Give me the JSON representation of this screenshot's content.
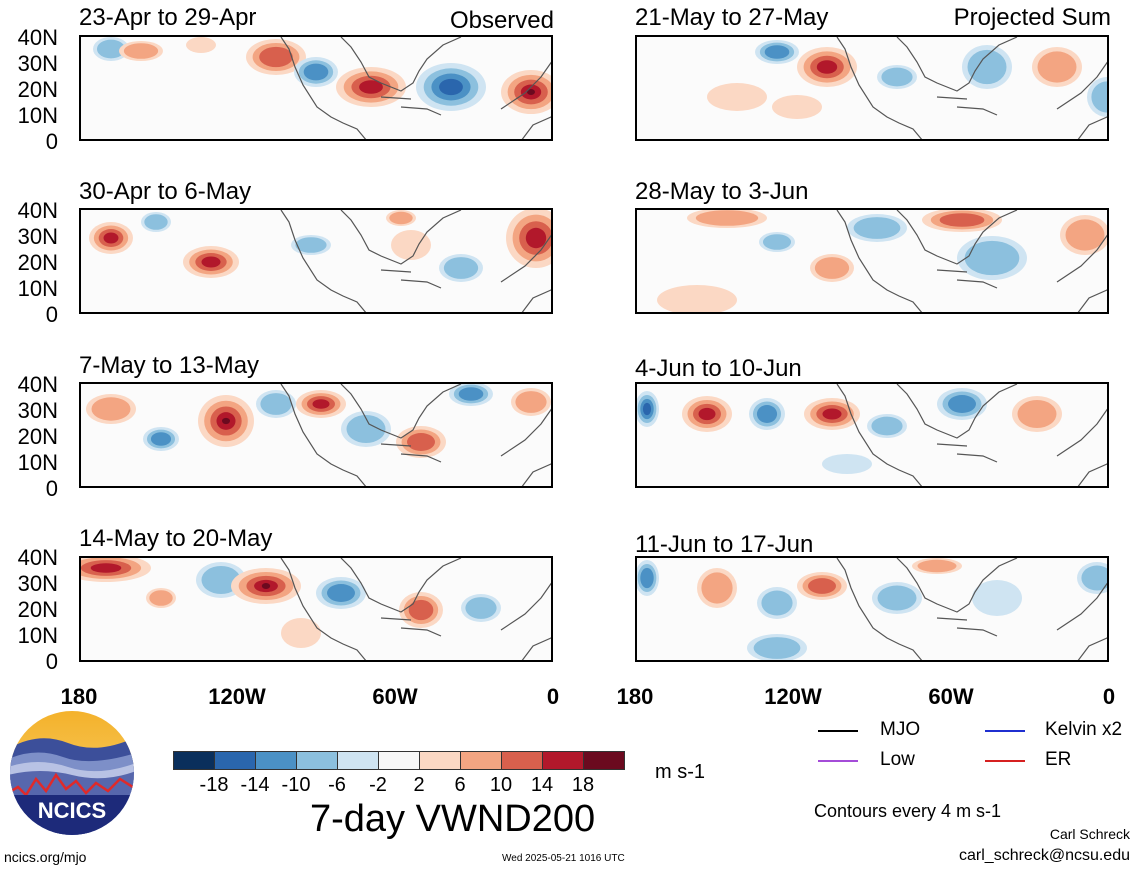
{
  "panels": [
    {
      "title": "23-Apr to 29-Apr",
      "tag": "Observed"
    },
    {
      "title": "30-Apr to 6-May",
      "tag": ""
    },
    {
      "title": "7-May to 13-May",
      "tag": ""
    },
    {
      "title": "14-May to 20-May",
      "tag": ""
    },
    {
      "title": "21-May to 27-May",
      "tag": "Projected Sum"
    },
    {
      "title": "28-May to 3-Jun",
      "tag": ""
    },
    {
      "title": "4-Jun to 10-Jun",
      "tag": ""
    },
    {
      "title": "11-Jun to 17-Jun",
      "tag": ""
    }
  ],
  "lat_labels": [
    "40N",
    "30N",
    "20N",
    "10N",
    "0"
  ],
  "lon_labels": [
    "180",
    "120W",
    "60W",
    "0"
  ],
  "colorbar": {
    "colors": [
      "#0a2f5c",
      "#2a66ad",
      "#4b91c5",
      "#8cc0de",
      "#cfe4f2",
      "#f7f7f7",
      "#fbd8c4",
      "#f3a582",
      "#d8604d",
      "#b2182b",
      "#6b0a1f"
    ],
    "labels": [
      "-18",
      "-14",
      "-10",
      "-6",
      "-2",
      "2",
      "6",
      "10",
      "14",
      "18"
    ],
    "units": "m s-1"
  },
  "main_title": "7-day VWND200",
  "legend": [
    {
      "label": "MJO",
      "color": "#000000"
    },
    {
      "label": "Kelvin x2",
      "color": "#1f2fd0"
    },
    {
      "label": "Low",
      "color": "#a44cd8"
    },
    {
      "label": "ER",
      "color": "#d62020"
    }
  ],
  "contour_note": "Contours every 4 m s-1",
  "author": "Carl Schreck",
  "email": "carl_schreck@ncsu.edu",
  "site": "ncics.org/mjo",
  "timestamp": "Wed 2025-05-21 1016 UTC",
  "logo_text": "NCICS"
}
